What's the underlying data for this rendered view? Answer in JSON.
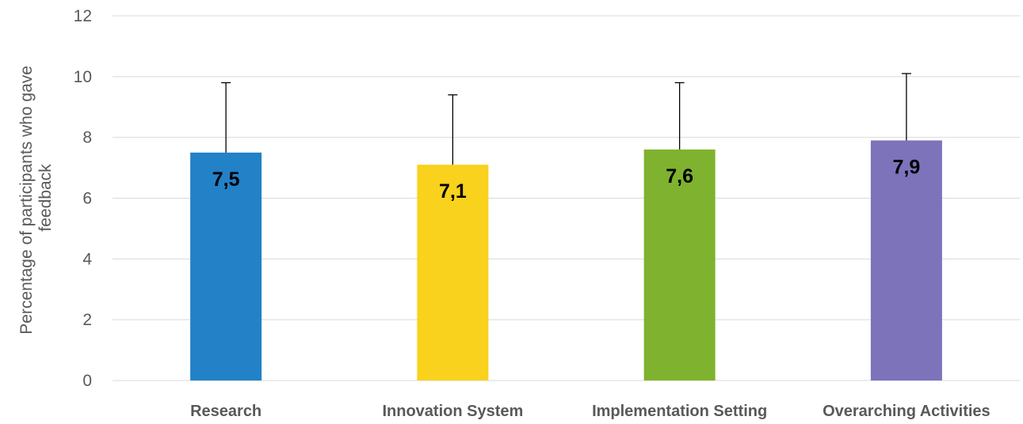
{
  "chart_data": {
    "type": "bar",
    "categories": [
      "Research",
      "Innovation System",
      "Implementation Setting",
      "Overarching Activities"
    ],
    "values": [
      7.5,
      7.1,
      7.6,
      7.9
    ],
    "value_labels": [
      "7,5",
      "7,1",
      "7,6",
      "7,9"
    ],
    "error_upper": [
      9.8,
      9.4,
      9.8,
      10.1
    ],
    "colors": [
      "#2381c8",
      "#f8d21c",
      "#7fb22e",
      "#7c73bb"
    ],
    "ylabel_lines": [
      "Percentage of participants who gave",
      "feedback"
    ],
    "xlabel": "",
    "ylim": [
      0,
      12
    ],
    "yticks": [
      0,
      2,
      4,
      6,
      8,
      10,
      12
    ],
    "grid": true,
    "legend": "none"
  }
}
